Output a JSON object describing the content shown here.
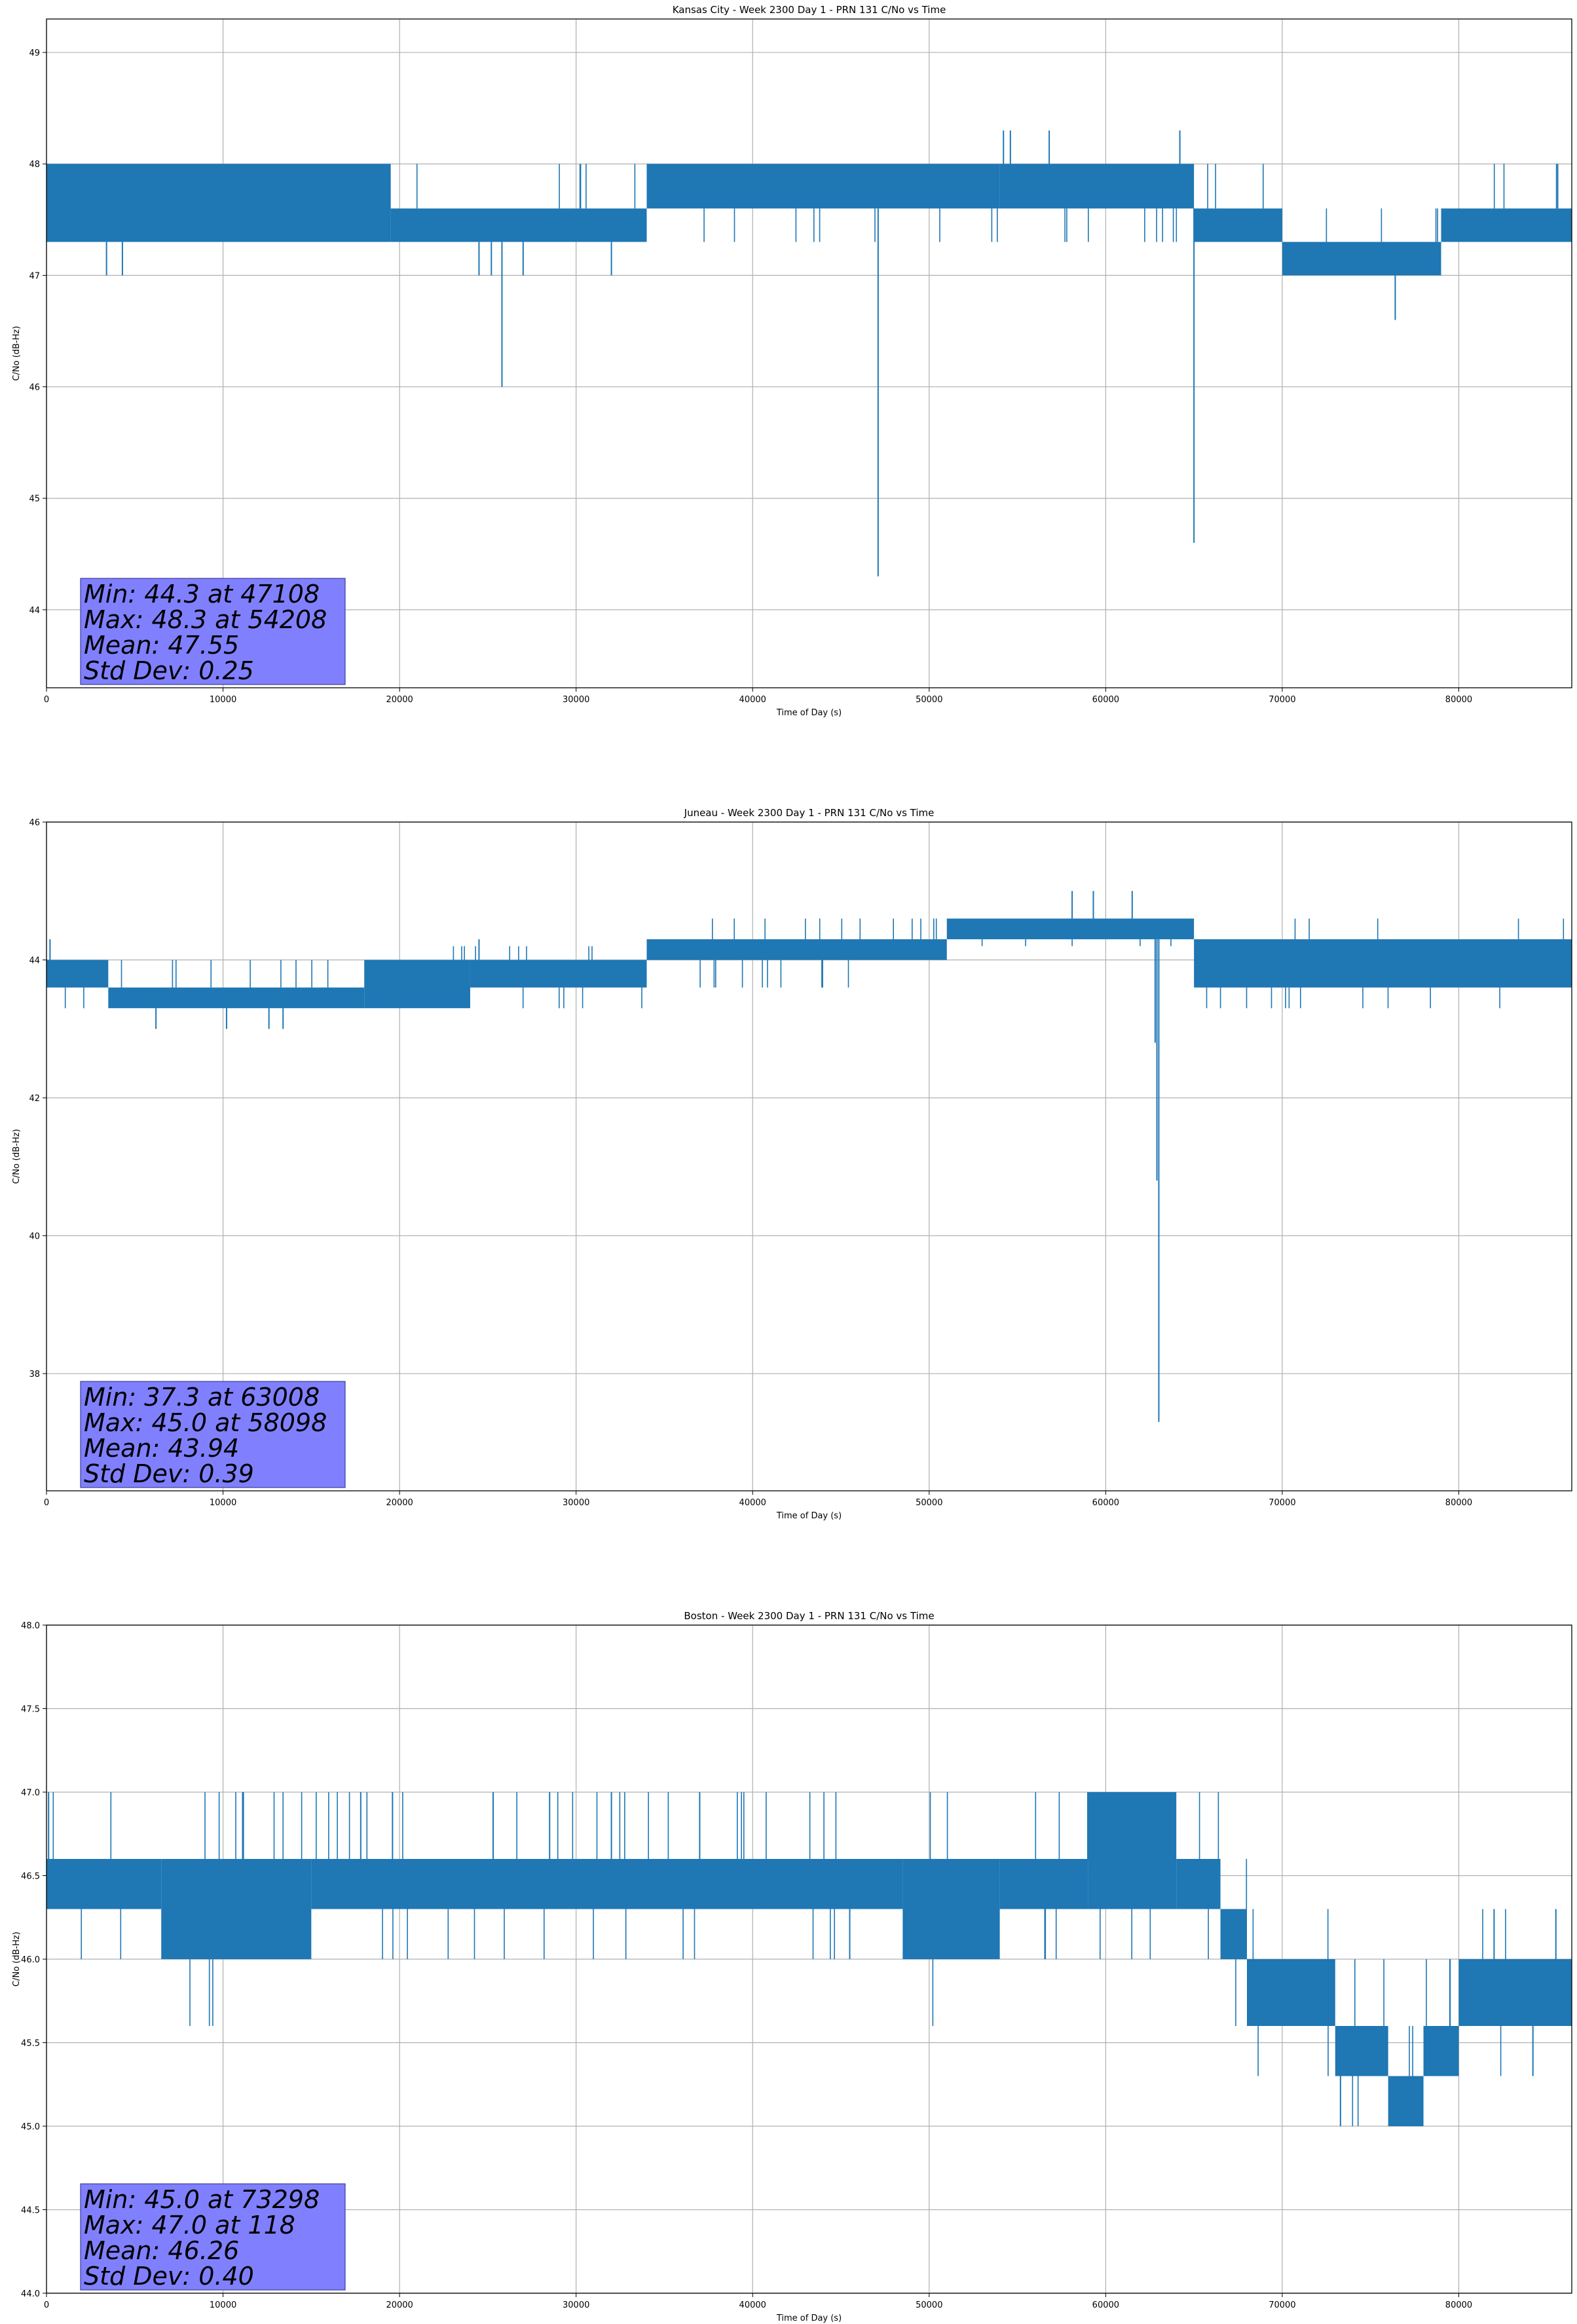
{
  "chart_data": [
    {
      "type": "line",
      "title": "Kansas City - Week 2300 Day 1 - PRN 131 C/No vs Time",
      "xlabel": "Time of Day (s)",
      "ylabel": "C/No (dB-Hz)",
      "xlim": [
        0,
        86400
      ],
      "ylim": [
        43.3,
        49.3
      ],
      "xticks": [
        0,
        10000,
        20000,
        30000,
        40000,
        50000,
        60000,
        70000,
        80000
      ],
      "yticks": [
        44,
        45,
        46,
        47,
        48,
        49
      ],
      "grid": true,
      "line_color": "#1f77b4",
      "series": [
        {
          "name": "C/No",
          "levels": [
            47.3,
            47.6,
            48.0
          ],
          "segments": [
            {
              "x0": 0,
              "x1": 19500,
              "low": 47.3,
              "high": 48.0
            },
            {
              "x0": 19500,
              "x1": 34000,
              "low": 47.3,
              "high": 47.6
            },
            {
              "x0": 34000,
              "x1": 54000,
              "low": 47.6,
              "high": 48.0
            },
            {
              "x0": 54000,
              "x1": 65000,
              "low": 47.6,
              "high": 48.0
            },
            {
              "x0": 65000,
              "x1": 70000,
              "low": 47.3,
              "high": 47.6
            },
            {
              "x0": 70000,
              "x1": 79000,
              "low": 47.0,
              "high": 47.3
            },
            {
              "x0": 79000,
              "x1": 86400,
              "low": 47.3,
              "high": 47.6
            }
          ],
          "spikes": [
            {
              "x": 3400,
              "y": 47.0
            },
            {
              "x": 4300,
              "y": 47.0
            },
            {
              "x": 24500,
              "y": 47.0
            },
            {
              "x": 25200,
              "y": 47.0
            },
            {
              "x": 25800,
              "y": 46.0
            },
            {
              "x": 27000,
              "y": 47.0
            },
            {
              "x": 32000,
              "y": 47.0
            },
            {
              "x": 47108,
              "y": 44.3
            },
            {
              "x": 65000,
              "y": 44.6
            },
            {
              "x": 76400,
              "y": 46.6
            },
            {
              "x": 54208,
              "y": 48.3
            },
            {
              "x": 54600,
              "y": 48.3
            },
            {
              "x": 56800,
              "y": 48.3
            },
            {
              "x": 64200,
              "y": 48.3
            }
          ]
        }
      ],
      "stats": {
        "min": "Min: 44.3 at 47108",
        "max": "Max: 48.3 at 54208",
        "mean": "Mean: 47.55",
        "std": "Std Dev: 0.25"
      }
    },
    {
      "type": "line",
      "title": "Juneau - Week 2300 Day 1 - PRN 131 C/No vs Time",
      "xlabel": "Time of Day (s)",
      "ylabel": "C/No (dB-Hz)",
      "xlim": [
        0,
        86400
      ],
      "ylim": [
        36.3,
        46.0
      ],
      "xticks": [
        0,
        10000,
        20000,
        30000,
        40000,
        50000,
        60000,
        70000,
        80000
      ],
      "yticks": [
        38,
        40,
        42,
        44,
        46
      ],
      "grid": true,
      "line_color": "#1f77b4",
      "series": [
        {
          "name": "C/No",
          "levels": [
            43.3,
            43.6,
            44.0,
            44.2,
            44.6
          ],
          "segments": [
            {
              "x0": 0,
              "x1": 3500,
              "low": 43.6,
              "high": 44.0
            },
            {
              "x0": 3500,
              "x1": 18000,
              "low": 43.3,
              "high": 43.6
            },
            {
              "x0": 18000,
              "x1": 24000,
              "low": 43.3,
              "high": 44.0
            },
            {
              "x0": 24000,
              "x1": 34000,
              "low": 43.6,
              "high": 44.0
            },
            {
              "x0": 34000,
              "x1": 51000,
              "low": 44.0,
              "high": 44.3
            },
            {
              "x0": 51000,
              "x1": 65000,
              "low": 44.3,
              "high": 44.6
            },
            {
              "x0": 65000,
              "x1": 86400,
              "low": 43.6,
              "high": 44.3
            }
          ],
          "spikes": [
            {
              "x": 6200,
              "y": 43.0
            },
            {
              "x": 10200,
              "y": 43.0
            },
            {
              "x": 12600,
              "y": 43.0
            },
            {
              "x": 13400,
              "y": 43.0
            },
            {
              "x": 62800,
              "y": 42.8
            },
            {
              "x": 62900,
              "y": 40.8
            },
            {
              "x": 63008,
              "y": 37.3
            },
            {
              "x": 58098,
              "y": 45.0
            },
            {
              "x": 59300,
              "y": 45.0
            },
            {
              "x": 61500,
              "y": 45.0
            },
            {
              "x": 200,
              "y": 44.3
            },
            {
              "x": 24500,
              "y": 44.3
            },
            {
              "x": 85000,
              "y": 44.3
            }
          ]
        }
      ],
      "stats": {
        "min": "Min: 37.3 at 63008",
        "max": "Max: 45.0 at 58098",
        "mean": "Mean: 43.94",
        "std": "Std Dev: 0.39"
      }
    },
    {
      "type": "line",
      "title": "Boston - Week 2300 Day 1 - PRN 131 C/No vs Time",
      "xlabel": "Time of Day (s)",
      "ylabel": "C/No (dB-Hz)",
      "xlim": [
        0,
        86400
      ],
      "ylim": [
        44.0,
        48.0
      ],
      "xticks": [
        0,
        10000,
        20000,
        30000,
        40000,
        50000,
        60000,
        70000,
        80000
      ],
      "yticks": [
        44.0,
        44.5,
        45.0,
        45.5,
        46.0,
        46.5,
        47.0,
        47.5,
        48.0
      ],
      "grid": true,
      "line_color": "#1f77b4",
      "series": [
        {
          "name": "C/No",
          "levels": [
            45.0,
            45.3,
            45.6,
            46.0,
            46.3,
            46.6,
            47.0
          ],
          "segments": [
            {
              "x0": 0,
              "x1": 6500,
              "low": 46.3,
              "high": 46.6
            },
            {
              "x0": 6500,
              "x1": 15000,
              "low": 46.0,
              "high": 46.6
            },
            {
              "x0": 15000,
              "x1": 48500,
              "low": 46.3,
              "high": 46.6
            },
            {
              "x0": 48500,
              "x1": 54000,
              "low": 46.0,
              "high": 46.6
            },
            {
              "x0": 54000,
              "x1": 59000,
              "low": 46.3,
              "high": 46.6
            },
            {
              "x0": 59000,
              "x1": 64000,
              "low": 46.3,
              "high": 47.0
            },
            {
              "x0": 64000,
              "x1": 66500,
              "low": 46.3,
              "high": 46.6
            },
            {
              "x0": 66500,
              "x1": 68000,
              "low": 46.0,
              "high": 46.3
            },
            {
              "x0": 68000,
              "x1": 73000,
              "low": 45.6,
              "high": 46.0
            },
            {
              "x0": 73000,
              "x1": 76000,
              "low": 45.3,
              "high": 45.6
            },
            {
              "x0": 76000,
              "x1": 78000,
              "low": 45.0,
              "high": 45.3
            },
            {
              "x0": 78000,
              "x1": 80000,
              "low": 45.3,
              "high": 45.6
            },
            {
              "x0": 80000,
              "x1": 86400,
              "low": 45.6,
              "high": 46.0
            }
          ],
          "spikes": [
            {
              "x": 118,
              "y": 47.0
            },
            {
              "x": 17800,
              "y": 47.0
            },
            {
              "x": 19600,
              "y": 47.0
            },
            {
              "x": 25300,
              "y": 47.0
            },
            {
              "x": 28500,
              "y": 47.0
            },
            {
              "x": 32000,
              "y": 47.0
            },
            {
              "x": 37000,
              "y": 47.0
            },
            {
              "x": 45500,
              "y": 46.0
            },
            {
              "x": 73298,
              "y": 45.0
            },
            {
              "x": 82000,
              "y": 46.3
            },
            {
              "x": 85500,
              "y": 46.3
            },
            {
              "x": 84200,
              "y": 45.3
            }
          ]
        }
      ],
      "stats": {
        "min": "Min: 45.0 at 73298",
        "max": "Max: 47.0 at 118",
        "mean": "Mean: 46.26",
        "std": "Std Dev: 0.40"
      }
    }
  ]
}
